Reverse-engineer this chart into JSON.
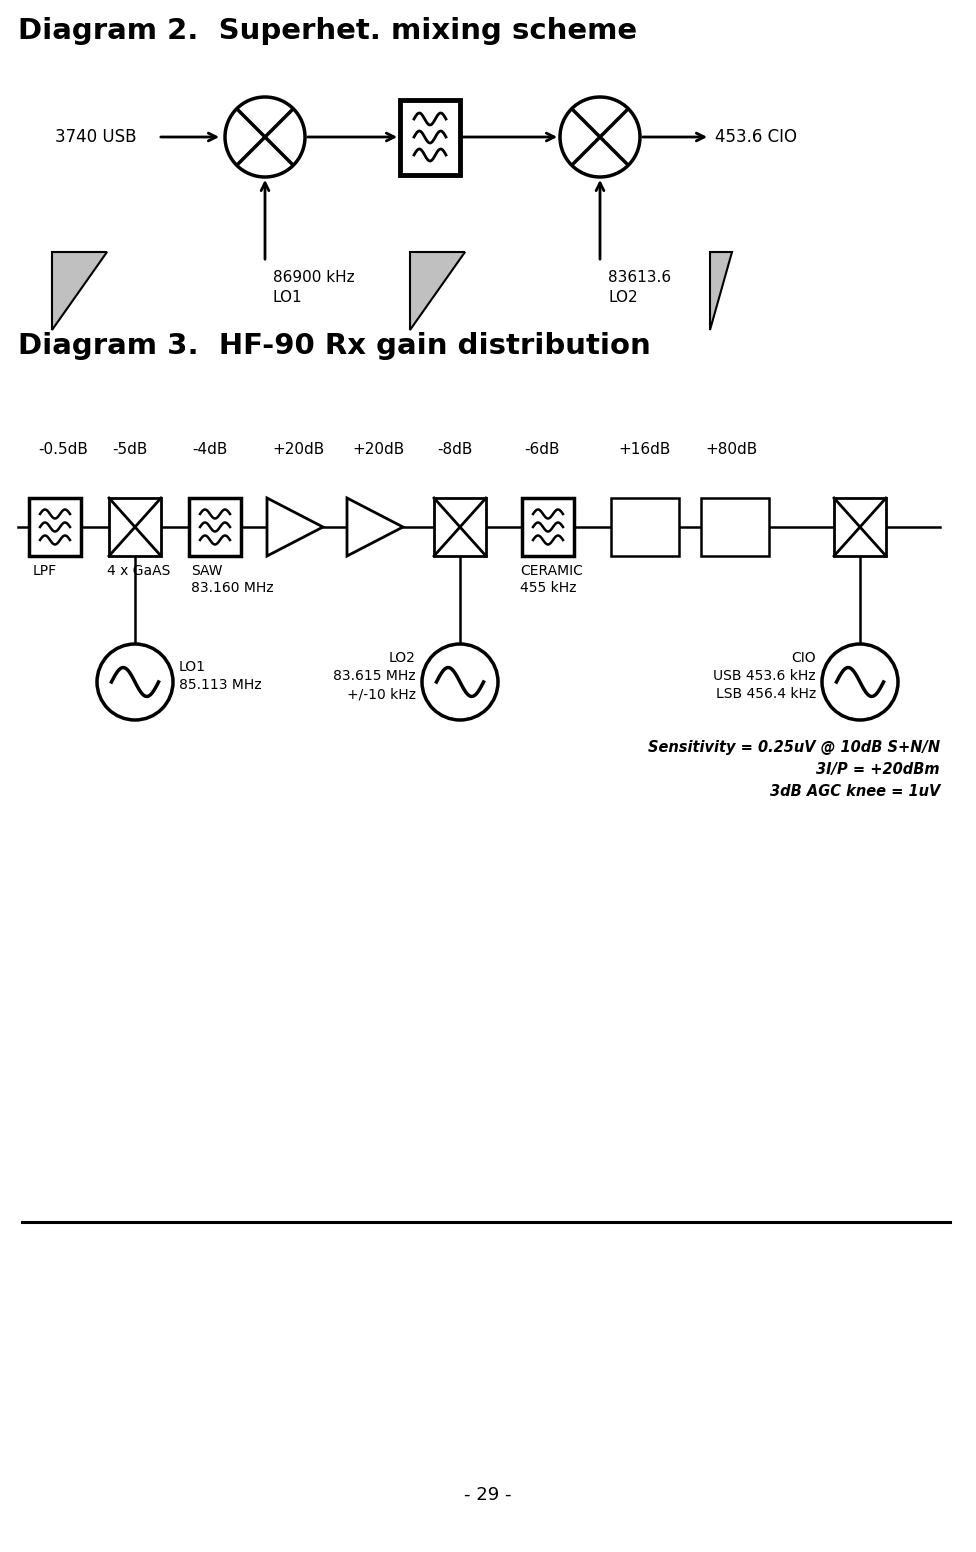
{
  "title2": "Diagram 2.  Superhet. mixing scheme",
  "title3": "Diagram 3.  HF-90 Rx gain distribution",
  "bg_color": "#ffffff",
  "text_color": "#000000",
  "diag2": {
    "input_label": "3740 USB",
    "output_label": "453.6 CIO",
    "lo1_label_line1": "86900 kHz",
    "lo1_label_line2": "LO1",
    "lo2_label_line1": "83613.6",
    "lo2_label_line2": "LO2"
  },
  "diag3": {
    "gains": [
      "-0.5dB",
      "-5dB",
      "-4dB",
      "+20dB",
      "+20dB",
      "-8dB",
      "-6dB",
      "+16dB",
      "+80dB"
    ],
    "lo1_label": "LO1\n85.113 MHz",
    "lo2_label": "LO2\n83.615 MHz\n+/-10 kHz",
    "cio_label": "CIO\nUSB 453.6 kHz\nLSB 456.4 kHz",
    "sensitivity_text": "Sensitivity = 0.25uV @ 10dB S+N/N\n3I/P = +20dBm\n3dB AGC knee = 1uV"
  },
  "page_number": "- 29 -"
}
